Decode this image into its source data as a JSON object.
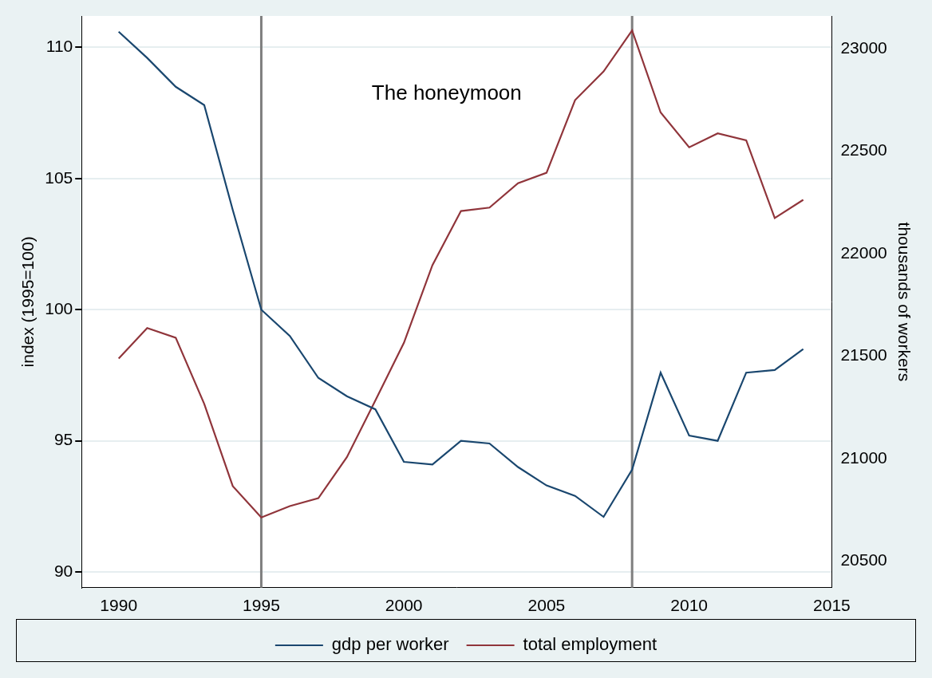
{
  "chart_data": {
    "type": "line",
    "x": [
      1990,
      1991,
      1992,
      1993,
      1994,
      1995,
      1996,
      1997,
      1998,
      1999,
      2000,
      2001,
      2002,
      2003,
      2004,
      2005,
      2006,
      2007,
      2008,
      2009,
      2010,
      2011,
      2012,
      2013,
      2014
    ],
    "xlim": [
      1988.7,
      2015
    ],
    "xticks": [
      1990,
      1995,
      2000,
      2005,
      2010,
      2015
    ],
    "y_label": "index (1995=100)",
    "y2_label": "thousands of workers",
    "ylim": [
      89.4,
      111.2
    ],
    "yticks": [
      90,
      95,
      100,
      105,
      110
    ],
    "y2lim": [
      20370,
      23160
    ],
    "y2ticks": [
      20500,
      21000,
      21500,
      22000,
      22500,
      23000
    ],
    "grid": true,
    "legend": "bottom",
    "vlines": [
      1995,
      2008
    ],
    "annotations": [
      {
        "text": "The honeymoon"
      }
    ],
    "series": [
      {
        "name": "gdp per worker",
        "color": "#1a476f",
        "axis": "y",
        "values": [
          110.6,
          109.6,
          108.5,
          107.8,
          103.8,
          100.0,
          99.0,
          97.4,
          96.7,
          96.2,
          94.2,
          94.1,
          95.0,
          94.9,
          94.0,
          93.3,
          92.9,
          92.1,
          93.9,
          97.6,
          95.2,
          95.0,
          97.6,
          97.7,
          98.5
        ]
      },
      {
        "name": "total employment",
        "color": "#90353b",
        "axis": "y2",
        "values": [
          21488,
          21637,
          21590,
          21267,
          20866,
          20713,
          20768,
          20807,
          21007,
          21284,
          21565,
          21944,
          22208,
          22225,
          22344,
          22395,
          22749,
          22889,
          23089,
          22689,
          22519,
          22587,
          22553,
          22174,
          22263
        ]
      }
    ]
  }
}
